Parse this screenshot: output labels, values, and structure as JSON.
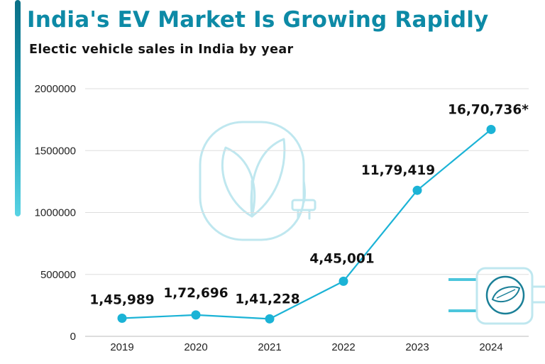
{
  "title": "India's EV Market Is Growing Rapidly",
  "subtitle": "Electic vehicle sales in India by year",
  "colors": {
    "title": "#0d8aa6",
    "line": "#1bb3d6",
    "grid": "#dddddd",
    "watermark": "#bfe7ef"
  },
  "icons": {
    "background": "leaf-plug-icon",
    "corner": "plug-icon"
  },
  "chart_data": {
    "type": "line",
    "title": "India's EV Market Is Growing Rapidly",
    "subtitle": "Electic vehicle sales in India by year",
    "categories": [
      "2019",
      "2020",
      "2021",
      "2022",
      "2023",
      "2024"
    ],
    "values": [
      145989,
      172696,
      141228,
      445001,
      1179419,
      1670736
    ],
    "data_labels": [
      "1,45,989",
      "1,72,696",
      "1,41,228",
      "4,45,001",
      "11,79,419",
      "16,70,736*"
    ],
    "yticks": [
      0,
      500000,
      1000000,
      1500000,
      2000000
    ],
    "ytick_labels": [
      "0",
      "500000",
      "1000000",
      "1500000",
      "2000000"
    ],
    "ylim": [
      0,
      2000000
    ],
    "xlabel": "",
    "ylabel": "",
    "grid": true,
    "legend": "none"
  }
}
